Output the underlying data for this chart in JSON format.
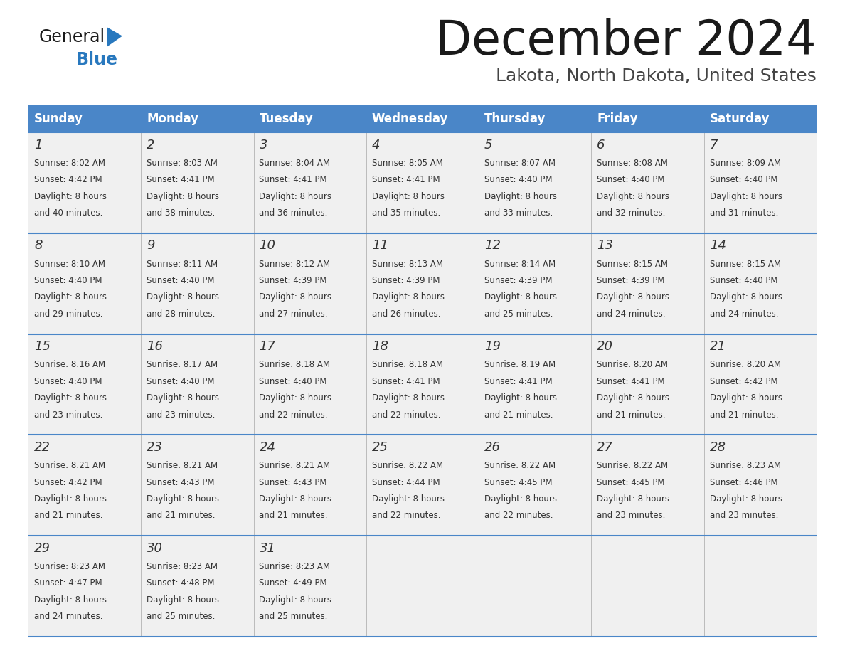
{
  "title": "December 2024",
  "subtitle": "Lakota, North Dakota, United States",
  "header_color": "#4a86c8",
  "header_text_color": "#ffffff",
  "cell_bg_color": "#f0f0f0",
  "border_color": "#4a86c8",
  "text_color": "#333333",
  "day_names": [
    "Sunday",
    "Monday",
    "Tuesday",
    "Wednesday",
    "Thursday",
    "Friday",
    "Saturday"
  ],
  "days": [
    {
      "day": 1,
      "col": 0,
      "row": 0,
      "sunrise": "8:02 AM",
      "sunset": "4:42 PM",
      "dl1": "Daylight: 8 hours",
      "dl2": "and 40 minutes."
    },
    {
      "day": 2,
      "col": 1,
      "row": 0,
      "sunrise": "8:03 AM",
      "sunset": "4:41 PM",
      "dl1": "Daylight: 8 hours",
      "dl2": "and 38 minutes."
    },
    {
      "day": 3,
      "col": 2,
      "row": 0,
      "sunrise": "8:04 AM",
      "sunset": "4:41 PM",
      "dl1": "Daylight: 8 hours",
      "dl2": "and 36 minutes."
    },
    {
      "day": 4,
      "col": 3,
      "row": 0,
      "sunrise": "8:05 AM",
      "sunset": "4:41 PM",
      "dl1": "Daylight: 8 hours",
      "dl2": "and 35 minutes."
    },
    {
      "day": 5,
      "col": 4,
      "row": 0,
      "sunrise": "8:07 AM",
      "sunset": "4:40 PM",
      "dl1": "Daylight: 8 hours",
      "dl2": "and 33 minutes."
    },
    {
      "day": 6,
      "col": 5,
      "row": 0,
      "sunrise": "8:08 AM",
      "sunset": "4:40 PM",
      "dl1": "Daylight: 8 hours",
      "dl2": "and 32 minutes."
    },
    {
      "day": 7,
      "col": 6,
      "row": 0,
      "sunrise": "8:09 AM",
      "sunset": "4:40 PM",
      "dl1": "Daylight: 8 hours",
      "dl2": "and 31 minutes."
    },
    {
      "day": 8,
      "col": 0,
      "row": 1,
      "sunrise": "8:10 AM",
      "sunset": "4:40 PM",
      "dl1": "Daylight: 8 hours",
      "dl2": "and 29 minutes."
    },
    {
      "day": 9,
      "col": 1,
      "row": 1,
      "sunrise": "8:11 AM",
      "sunset": "4:40 PM",
      "dl1": "Daylight: 8 hours",
      "dl2": "and 28 minutes."
    },
    {
      "day": 10,
      "col": 2,
      "row": 1,
      "sunrise": "8:12 AM",
      "sunset": "4:39 PM",
      "dl1": "Daylight: 8 hours",
      "dl2": "and 27 minutes."
    },
    {
      "day": 11,
      "col": 3,
      "row": 1,
      "sunrise": "8:13 AM",
      "sunset": "4:39 PM",
      "dl1": "Daylight: 8 hours",
      "dl2": "and 26 minutes."
    },
    {
      "day": 12,
      "col": 4,
      "row": 1,
      "sunrise": "8:14 AM",
      "sunset": "4:39 PM",
      "dl1": "Daylight: 8 hours",
      "dl2": "and 25 minutes."
    },
    {
      "day": 13,
      "col": 5,
      "row": 1,
      "sunrise": "8:15 AM",
      "sunset": "4:39 PM",
      "dl1": "Daylight: 8 hours",
      "dl2": "and 24 minutes."
    },
    {
      "day": 14,
      "col": 6,
      "row": 1,
      "sunrise": "8:15 AM",
      "sunset": "4:40 PM",
      "dl1": "Daylight: 8 hours",
      "dl2": "and 24 minutes."
    },
    {
      "day": 15,
      "col": 0,
      "row": 2,
      "sunrise": "8:16 AM",
      "sunset": "4:40 PM",
      "dl1": "Daylight: 8 hours",
      "dl2": "and 23 minutes."
    },
    {
      "day": 16,
      "col": 1,
      "row": 2,
      "sunrise": "8:17 AM",
      "sunset": "4:40 PM",
      "dl1": "Daylight: 8 hours",
      "dl2": "and 23 minutes."
    },
    {
      "day": 17,
      "col": 2,
      "row": 2,
      "sunrise": "8:18 AM",
      "sunset": "4:40 PM",
      "dl1": "Daylight: 8 hours",
      "dl2": "and 22 minutes."
    },
    {
      "day": 18,
      "col": 3,
      "row": 2,
      "sunrise": "8:18 AM",
      "sunset": "4:41 PM",
      "dl1": "Daylight: 8 hours",
      "dl2": "and 22 minutes."
    },
    {
      "day": 19,
      "col": 4,
      "row": 2,
      "sunrise": "8:19 AM",
      "sunset": "4:41 PM",
      "dl1": "Daylight: 8 hours",
      "dl2": "and 21 minutes."
    },
    {
      "day": 20,
      "col": 5,
      "row": 2,
      "sunrise": "8:20 AM",
      "sunset": "4:41 PM",
      "dl1": "Daylight: 8 hours",
      "dl2": "and 21 minutes."
    },
    {
      "day": 21,
      "col": 6,
      "row": 2,
      "sunrise": "8:20 AM",
      "sunset": "4:42 PM",
      "dl1": "Daylight: 8 hours",
      "dl2": "and 21 minutes."
    },
    {
      "day": 22,
      "col": 0,
      "row": 3,
      "sunrise": "8:21 AM",
      "sunset": "4:42 PM",
      "dl1": "Daylight: 8 hours",
      "dl2": "and 21 minutes."
    },
    {
      "day": 23,
      "col": 1,
      "row": 3,
      "sunrise": "8:21 AM",
      "sunset": "4:43 PM",
      "dl1": "Daylight: 8 hours",
      "dl2": "and 21 minutes."
    },
    {
      "day": 24,
      "col": 2,
      "row": 3,
      "sunrise": "8:21 AM",
      "sunset": "4:43 PM",
      "dl1": "Daylight: 8 hours",
      "dl2": "and 21 minutes."
    },
    {
      "day": 25,
      "col": 3,
      "row": 3,
      "sunrise": "8:22 AM",
      "sunset": "4:44 PM",
      "dl1": "Daylight: 8 hours",
      "dl2": "and 22 minutes."
    },
    {
      "day": 26,
      "col": 4,
      "row": 3,
      "sunrise": "8:22 AM",
      "sunset": "4:45 PM",
      "dl1": "Daylight: 8 hours",
      "dl2": "and 22 minutes."
    },
    {
      "day": 27,
      "col": 5,
      "row": 3,
      "sunrise": "8:22 AM",
      "sunset": "4:45 PM",
      "dl1": "Daylight: 8 hours",
      "dl2": "and 23 minutes."
    },
    {
      "day": 28,
      "col": 6,
      "row": 3,
      "sunrise": "8:23 AM",
      "sunset": "4:46 PM",
      "dl1": "Daylight: 8 hours",
      "dl2": "and 23 minutes."
    },
    {
      "day": 29,
      "col": 0,
      "row": 4,
      "sunrise": "8:23 AM",
      "sunset": "4:47 PM",
      "dl1": "Daylight: 8 hours",
      "dl2": "and 24 minutes."
    },
    {
      "day": 30,
      "col": 1,
      "row": 4,
      "sunrise": "8:23 AM",
      "sunset": "4:48 PM",
      "dl1": "Daylight: 8 hours",
      "dl2": "and 25 minutes."
    },
    {
      "day": 31,
      "col": 2,
      "row": 4,
      "sunrise": "8:23 AM",
      "sunset": "4:49 PM",
      "dl1": "Daylight: 8 hours",
      "dl2": "and 25 minutes."
    }
  ],
  "num_rows": 5,
  "num_cols": 7,
  "logo_general_color": "#1a1a1a",
  "logo_blue_color": "#2878be"
}
